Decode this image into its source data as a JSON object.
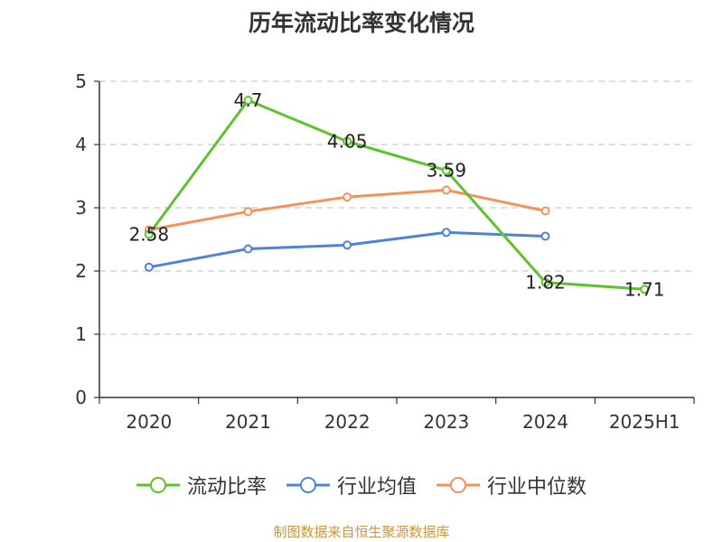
{
  "chart_data": {
    "type": "line",
    "title": "历年流动比率变化情况",
    "categories": [
      "2020",
      "2021",
      "2022",
      "2023",
      "2024",
      "2025H1"
    ],
    "series": [
      {
        "name": "流动比率",
        "color": "#5ec22f",
        "values": [
          2.58,
          4.7,
          4.05,
          3.59,
          1.82,
          1.71
        ],
        "labels": [
          "2.58",
          "4.7",
          "4.05",
          "3.59",
          "1.82",
          "1.71"
        ]
      },
      {
        "name": "行业均值",
        "color": "#4f83d8",
        "values": [
          2.06,
          2.35,
          2.41,
          2.61,
          2.55,
          null
        ]
      },
      {
        "name": "行业中位数",
        "color": "#f5915b",
        "values": [
          2.65,
          2.94,
          3.17,
          3.28,
          2.95,
          null
        ]
      }
    ],
    "yticks": [
      "0",
      "1",
      "2",
      "3",
      "4",
      "5"
    ],
    "ylim": [
      0,
      5
    ],
    "grid": true,
    "legend_position": "bottom"
  },
  "footer": "制图数据来自恒生聚源数据库"
}
